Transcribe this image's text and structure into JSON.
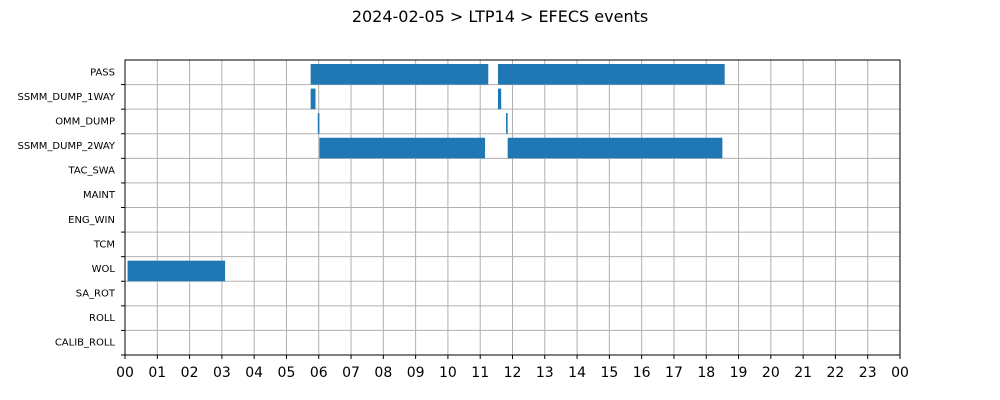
{
  "chart_data": {
    "type": "timeline",
    "title": "2024-02-05 > LTP14 > EFECS events",
    "xlabel": "",
    "ylabel": "",
    "xlim": [
      0,
      24
    ],
    "x_ticks": [
      "00",
      "01",
      "02",
      "03",
      "04",
      "05",
      "06",
      "07",
      "08",
      "09",
      "10",
      "11",
      "12",
      "13",
      "14",
      "15",
      "16",
      "17",
      "18",
      "19",
      "20",
      "21",
      "22",
      "23",
      "00"
    ],
    "categories": [
      "PASS",
      "SSMM_DUMP_1WAY",
      "OMM_DUMP",
      "SSMM_DUMP_2WAY",
      "TAC_SWA",
      "MAINT",
      "ENG_WIN",
      "TCM",
      "WOL",
      "SA_ROT",
      "ROLL",
      "CALIB_ROLL"
    ],
    "grid": true,
    "bar_color": "#1f77b4",
    "events": [
      {
        "category": "PASS",
        "start": 5.75,
        "end": 11.25
      },
      {
        "category": "PASS",
        "start": 11.55,
        "end": 18.57
      },
      {
        "category": "SSMM_DUMP_1WAY",
        "start": 5.75,
        "end": 5.9
      },
      {
        "category": "SSMM_DUMP_1WAY",
        "start": 11.55,
        "end": 11.65
      },
      {
        "category": "OMM_DUMP",
        "start": 5.97,
        "end": 6.02
      },
      {
        "category": "OMM_DUMP",
        "start": 11.8,
        "end": 11.85
      },
      {
        "category": "SSMM_DUMP_2WAY",
        "start": 6.02,
        "end": 11.15
      },
      {
        "category": "SSMM_DUMP_2WAY",
        "start": 11.85,
        "end": 18.5
      },
      {
        "category": "WOL",
        "start": 0.08,
        "end": 3.1
      }
    ]
  }
}
